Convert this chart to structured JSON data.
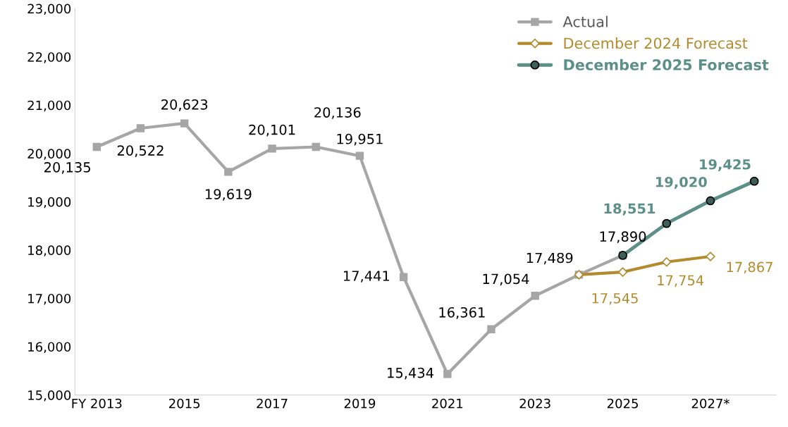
{
  "chart_data": {
    "type": "line",
    "categories": [
      "FY 2013",
      null,
      "2015",
      null,
      "2017",
      null,
      "2019",
      null,
      "2021",
      null,
      "2023",
      null,
      "2025",
      null,
      "2027*",
      null
    ],
    "series": [
      {
        "name": "Actual",
        "color": "#a6a6a6",
        "marker": "square",
        "values": [
          20135,
          20522,
          20623,
          19619,
          20101,
          20136,
          19951,
          17441,
          15434,
          16361,
          17054,
          17489,
          17890,
          null,
          null,
          null
        ],
        "value_labels": [
          "20,135",
          "20,522",
          "20,623",
          "19,619",
          "20,101",
          "20,136",
          "19,951",
          "17,441",
          "15,434",
          "16,361",
          "17,054",
          "17,489",
          "17,890",
          null,
          null,
          null
        ]
      },
      {
        "name": "December 2024 Forecast",
        "color": "#b38b2d",
        "marker": "diamond",
        "values": [
          null,
          null,
          null,
          null,
          null,
          null,
          null,
          null,
          null,
          null,
          null,
          17489,
          17545,
          17754,
          17867,
          null
        ],
        "value_labels": [
          null,
          null,
          null,
          null,
          null,
          null,
          null,
          null,
          null,
          null,
          null,
          null,
          "17,545",
          "17,754",
          "17,867",
          null
        ]
      },
      {
        "name": "December 2025 Forecast",
        "color": "#5b8f87",
        "marker": "circle",
        "values": [
          null,
          null,
          null,
          null,
          null,
          null,
          null,
          null,
          null,
          null,
          null,
          null,
          17890,
          18551,
          19020,
          19425
        ],
        "value_labels": [
          null,
          null,
          null,
          null,
          null,
          null,
          null,
          null,
          null,
          null,
          null,
          null,
          null,
          "18,551",
          "19,020",
          "19,425"
        ]
      }
    ],
    "ylim": [
      15000,
      23000
    ],
    "yticks": [
      {
        "value": 15000,
        "label": "15,000"
      },
      {
        "value": 16000,
        "label": "16,000"
      },
      {
        "value": 17000,
        "label": "17,000"
      },
      {
        "value": 18000,
        "label": "18,000"
      },
      {
        "value": 19000,
        "label": "19,000"
      },
      {
        "value": 20000,
        "label": "20,000"
      },
      {
        "value": 21000,
        "label": "21,000"
      },
      {
        "value": 22000,
        "label": "22,000"
      },
      {
        "value": 23000,
        "label": "23,000"
      }
    ],
    "grid": false,
    "legend": "top right",
    "line_style": "solid"
  }
}
